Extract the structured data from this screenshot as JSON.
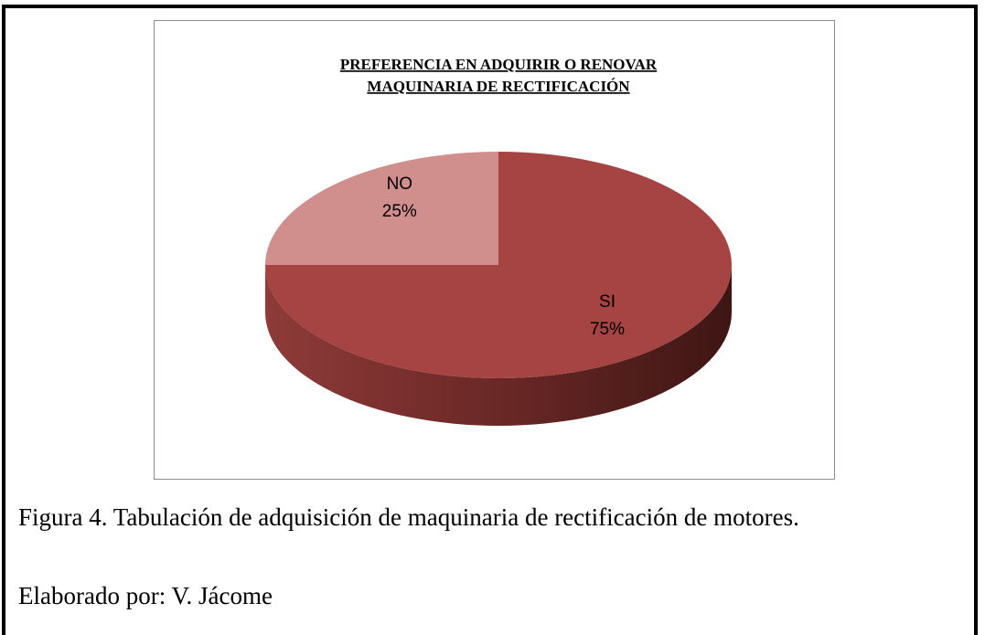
{
  "chart_data": {
    "type": "pie",
    "title": "PREFERENCIA EN ADQUIRIR O RENOVAR MAQUINARIA DE RECTIFICACIÓN",
    "categories": [
      "SI",
      "NO"
    ],
    "values": [
      75,
      25
    ],
    "value_labels": [
      "75%",
      "25%"
    ],
    "colors": [
      "#a54442",
      "#d08e8c"
    ]
  },
  "caption": "Figura 4. Tabulación de adquisición de maquinaria de rectificación de motores.",
  "credit": "Elaborado por: V. Jácome"
}
